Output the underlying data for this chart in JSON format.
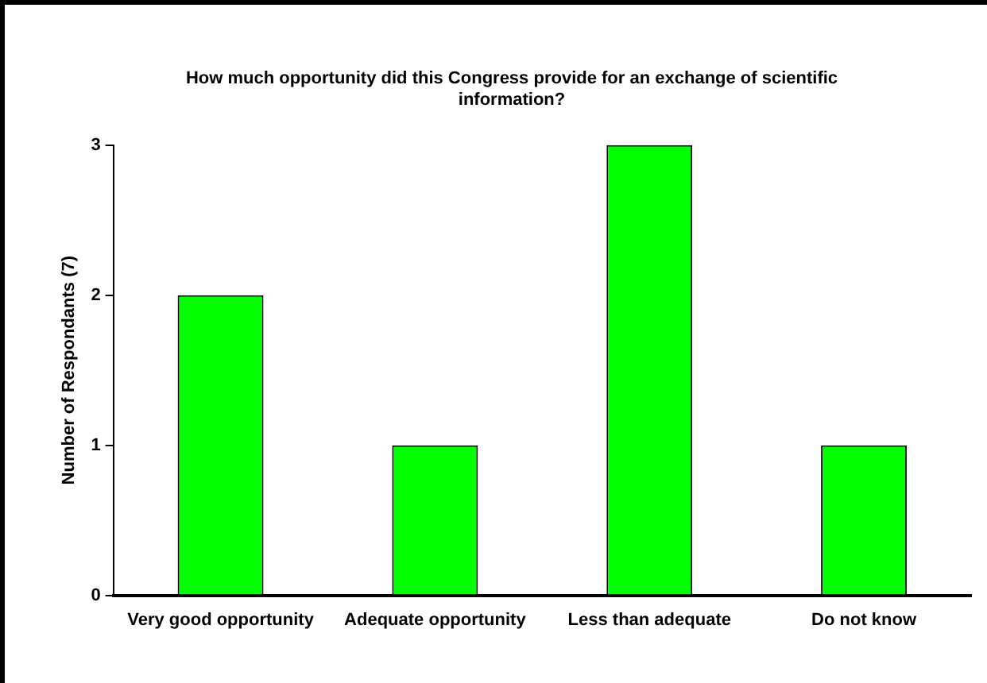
{
  "chart_data": {
    "type": "bar",
    "title": "How much opportunity did this Congress provide for an exchange of scientific information?",
    "ylabel": "Number of Respondants (7)",
    "categories": [
      "Very good opportunity",
      "Adequate opportunity",
      "Less than adequate",
      "Do not know"
    ],
    "values": [
      2,
      1,
      3,
      1
    ],
    "color": "#00ff00",
    "ylim": [
      0,
      3
    ],
    "yticks": [
      0,
      1,
      2,
      3
    ],
    "grid": false,
    "legend": false
  }
}
